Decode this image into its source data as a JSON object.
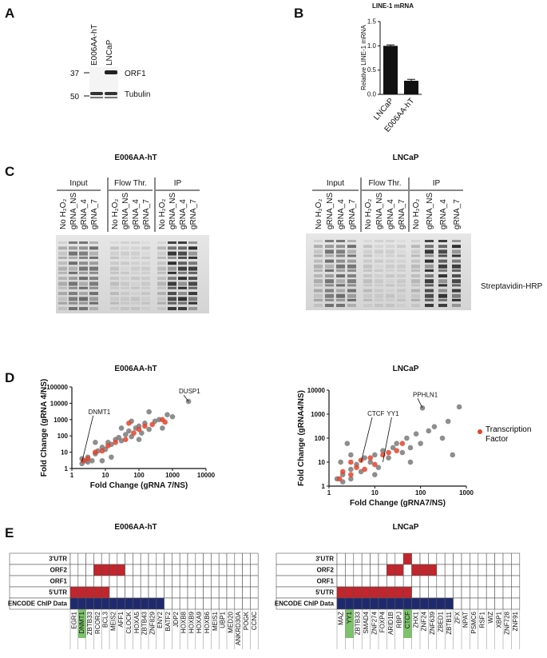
{
  "panel_letters": [
    "A",
    "B",
    "C",
    "D",
    "E"
  ],
  "blot_a": {
    "lanes": [
      "E006AA-hT",
      "LNCaP"
    ],
    "markers": [
      "37",
      "50"
    ],
    "bands": [
      "ORF1",
      "Tubulin"
    ]
  },
  "blot_c": {
    "titles": [
      "E006AA-hT",
      "LNCaP"
    ],
    "groups": [
      "Input",
      "Flow Thr.",
      "IP"
    ],
    "lanes": [
      "No H₂O₂",
      "gRNA_NS",
      "gRNA_4",
      "gRNA_7"
    ],
    "detection": "Streptavidin-HRP"
  },
  "chart_data": [
    {
      "type": "bar",
      "title": "LINE-1 mRNA",
      "y_label": "Relative LINE-1 mRNA",
      "categories": [
        "LNCaP",
        "E006AA-hT"
      ],
      "values": [
        1.0,
        0.28
      ],
      "errors": [
        0.02,
        0.03
      ],
      "color": "#111111",
      "ylim": [
        0,
        1.5
      ],
      "yticks": [
        {
          "value": 0,
          "label": "0.0"
        },
        {
          "value": 0.5,
          "label": "0.5"
        },
        {
          "value": 1,
          "label": "1.0"
        },
        {
          "value": 1.5,
          "label": "1.5"
        }
      ]
    },
    {
      "type": "scatter",
      "title": "E006AA-hT",
      "x_label": "Fold Change (gRNA 7/NS)",
      "y_label": "Fold Change (gRNA 4/NS)",
      "log_x": true,
      "log_y": true,
      "xlim": [
        1,
        10000
      ],
      "ylim": [
        1,
        100000
      ],
      "xticks": [
        1,
        10,
        100,
        1000,
        10000
      ],
      "yticks": [
        1,
        10,
        100,
        1000,
        10000,
        100000
      ],
      "series": [
        {
          "color": "#7a7a7a",
          "x": [
            2,
            2.5,
            3,
            2,
            3,
            4,
            5,
            6,
            8,
            10,
            12,
            15,
            20,
            25,
            30,
            40,
            50,
            60,
            80,
            100,
            120,
            150,
            200,
            300,
            400,
            500,
            700,
            1000,
            60,
            30,
            15,
            100,
            3000,
            200,
            5,
            8
          ],
          "y": [
            2,
            3,
            2.5,
            4,
            5,
            3,
            8,
            12,
            20,
            15,
            40,
            30,
            60,
            80,
            50,
            120,
            200,
            90,
            300,
            400,
            150,
            600,
            250,
            800,
            1000,
            300,
            2000,
            1500,
            800,
            300,
            5,
            60,
            13000,
            3000,
            40,
            3
          ]
        },
        {
          "color": "#e5432a",
          "x": [
            2.2,
            3,
            5,
            8,
            12,
            20,
            40,
            70,
            100,
            150,
            250,
            500,
            600,
            50
          ],
          "y": [
            3,
            4,
            10,
            12,
            25,
            40,
            60,
            150,
            250,
            400,
            500,
            1000,
            700,
            600
          ]
        }
      ],
      "annotations": [
        {
          "text": "DUSP1",
          "x": 3000,
          "y": 13000
        },
        {
          "text": "DNMT1",
          "x": 2,
          "y": 2.5
        }
      ]
    },
    {
      "type": "scatter",
      "title": "LNCaP",
      "x_label": "Fold Change (gRNA7/NS)",
      "y_label": "Fold Change (gRNA4/NS)",
      "log_x": true,
      "log_y": true,
      "xlim": [
        1,
        1000
      ],
      "ylim": [
        1,
        10000
      ],
      "xticks": [
        1,
        10,
        100,
        1000
      ],
      "yticks": [
        1,
        10,
        100,
        1000,
        10000
      ],
      "legend": "right",
      "series": [
        {
          "color": "#7a7a7a",
          "x": [
            1.5,
            2,
            2,
            3,
            3,
            4,
            5,
            6,
            8,
            10,
            12,
            15,
            20,
            25,
            30,
            40,
            50,
            60,
            80,
            100,
            150,
            200,
            300,
            400,
            500,
            700,
            110,
            1.8,
            3,
            2.5,
            10,
            60
          ],
          "y": [
            2,
            3,
            1.5,
            5,
            2,
            8,
            4,
            15,
            10,
            20,
            6,
            30,
            15,
            40,
            60,
            25,
            100,
            40,
            150,
            60,
            200,
            300,
            100,
            500,
            20,
            2000,
            1800,
            10,
            20,
            60,
            3,
            10
          ]
        },
        {
          "name": "Transcription Factor",
          "color": "#e5432a",
          "x": [
            1.7,
            2,
            3,
            4,
            5,
            6,
            8,
            10,
            15,
            20,
            30,
            40,
            3
          ],
          "y": [
            2,
            4,
            3,
            6,
            12,
            5,
            15,
            8,
            20,
            25,
            30,
            60,
            10
          ]
        }
      ],
      "annotations": [
        {
          "text": "PPHLN1",
          "x": 110,
          "y": 1800
        },
        {
          "text": "CTCF",
          "x": 5,
          "y": 10
        },
        {
          "text": "YY1",
          "x": 15,
          "y": 10
        }
      ]
    }
  ],
  "tables": [
    {
      "title": "E006AA-hT",
      "genes": [
        "EGR1",
        "DNMT1",
        "ZBTB33",
        "RCOR2",
        "BCL3",
        "MEIS2",
        "AFF1",
        "CLOCK",
        "HOXA5",
        "ZBTB43",
        "ZNF829",
        "ENY2",
        "BATF2",
        "JDP2",
        "HOXB8",
        "HOXB9",
        "HOXA9",
        "HOXB6",
        "MEIS1",
        "UBP1",
        "MED20",
        "ANKRD30A",
        "POGK",
        "CCNC"
      ],
      "highlighted": [
        1
      ],
      "rows": [
        {
          "label": "3'UTR",
          "color": "#c4242b",
          "cells": [
            0,
            0,
            0,
            0,
            0,
            0,
            0,
            0,
            0,
            0,
            0,
            0,
            0,
            0,
            0,
            0,
            0,
            0,
            0,
            0,
            0,
            0,
            0,
            0
          ]
        },
        {
          "label": "ORF2",
          "color": "#c4242b",
          "cells": [
            0,
            0,
            0,
            1,
            1,
            1,
            1,
            0,
            0,
            0,
            0,
            0,
            0,
            0,
            0,
            0,
            0,
            0,
            0,
            0,
            0,
            0,
            0,
            0
          ]
        },
        {
          "label": "ORF1",
          "color": "#c4242b",
          "cells": [
            0,
            0,
            0,
            0,
            0,
            0,
            0,
            0,
            0,
            0,
            0,
            0,
            0,
            0,
            0,
            0,
            0,
            0,
            0,
            0,
            0,
            0,
            0,
            0
          ]
        },
        {
          "label": "5'UTR",
          "color": "#c4242b",
          "cells": [
            1,
            1,
            1,
            1,
            1,
            0,
            0,
            0,
            0,
            0,
            0,
            0,
            0,
            0,
            0,
            0,
            0,
            0,
            0,
            0,
            0,
            0,
            0,
            0
          ]
        },
        {
          "label": "ENCODE ChIP Data",
          "color": "#1f2a6e",
          "cells": [
            1,
            1,
            1,
            1,
            1,
            1,
            1,
            1,
            1,
            1,
            1,
            1,
            0,
            0,
            0,
            0,
            0,
            0,
            0,
            0,
            0,
            0,
            0,
            0
          ]
        }
      ]
    },
    {
      "title": "LNCaP",
      "genes": [
        "MAZ",
        "YY1",
        "ZBTB33",
        "SMAD4",
        "ZNF274",
        "FOXP4",
        "ARID1B",
        "RBPJ",
        "CTCF",
        "ZHX1",
        "ZNF24",
        "ZNF639",
        "ZBED1",
        "ZBTB11",
        "ZFX",
        "NPAT",
        "PSMC6",
        "RSF1",
        "WIZ",
        "XBP1",
        "ZNF728",
        "ZNF91"
      ],
      "highlighted": [
        1,
        8
      ],
      "rows": [
        {
          "label": "3'UTR",
          "color": "#c4242b",
          "cells": [
            0,
            0,
            0,
            0,
            0,
            0,
            0,
            0,
            1,
            0,
            0,
            0,
            0,
            0,
            0,
            0,
            0,
            0,
            0,
            0,
            0,
            0
          ]
        },
        {
          "label": "ORF2",
          "color": "#c4242b",
          "cells": [
            0,
            0,
            0,
            0,
            0,
            0,
            1,
            1,
            0,
            1,
            1,
            1,
            0,
            0,
            0,
            0,
            0,
            0,
            0,
            0,
            0,
            0
          ]
        },
        {
          "label": "ORF1",
          "color": "#c4242b",
          "cells": [
            0,
            0,
            0,
            0,
            0,
            0,
            0,
            0,
            0,
            0,
            0,
            0,
            0,
            0,
            0,
            0,
            0,
            0,
            0,
            0,
            0,
            0
          ]
        },
        {
          "label": "5'UTR",
          "color": "#c4242b",
          "cells": [
            1,
            1,
            1,
            1,
            1,
            1,
            1,
            1,
            1,
            0,
            0,
            0,
            0,
            0,
            0,
            0,
            0,
            0,
            0,
            0,
            0,
            0
          ]
        },
        {
          "label": "ENCODE ChIP Data",
          "color": "#1f2a6e",
          "cells": [
            1,
            1,
            1,
            1,
            1,
            1,
            1,
            1,
            1,
            1,
            1,
            1,
            1,
            1,
            0,
            0,
            0,
            0,
            0,
            0,
            0,
            0
          ]
        }
      ]
    }
  ]
}
